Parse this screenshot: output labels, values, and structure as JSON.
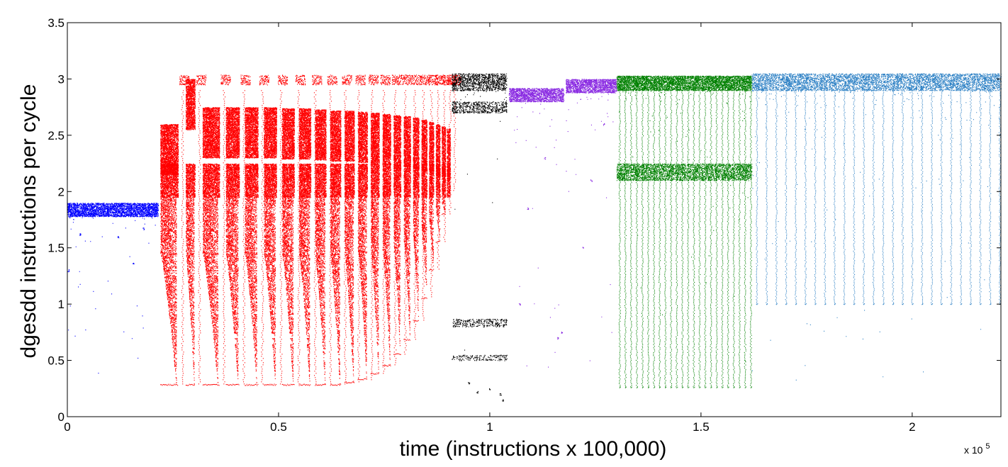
{
  "chart_data": {
    "type": "scatter",
    "title": "",
    "xlabel": "time (instructions x 100,000)",
    "ylabel": "dgesdd instructions per cycle",
    "x_multiplier_base": "x 10",
    "x_multiplier_exp": "5",
    "xlim": [
      0,
      221000
    ],
    "ylim": [
      0,
      3.5
    ],
    "x_ticks": [
      {
        "value": 0,
        "label": "0"
      },
      {
        "value": 50000,
        "label": "0.5"
      },
      {
        "value": 100000,
        "label": "1"
      },
      {
        "value": 150000,
        "label": "1.5"
      },
      {
        "value": 200000,
        "label": "2"
      }
    ],
    "y_ticks": [
      {
        "value": 0,
        "label": "0"
      },
      {
        "value": 0.5,
        "label": "0.5"
      },
      {
        "value": 1,
        "label": "1"
      },
      {
        "value": 1.5,
        "label": "1.5"
      },
      {
        "value": 2,
        "label": "2"
      },
      {
        "value": 2.5,
        "label": "2.5"
      },
      {
        "value": 3,
        "label": "3"
      },
      {
        "value": 3.5,
        "label": "3.5"
      }
    ],
    "grid": false,
    "legend": "none",
    "series": [
      {
        "color": "#0000ff",
        "x_range": [
          0,
          21500
        ],
        "bands": [
          {
            "ylo": 1.78,
            "yhi": 1.9,
            "density": 1.0
          }
        ],
        "outliers": [
          [
            200,
            1.3
          ],
          [
            15500,
            1.36
          ],
          [
            12000,
            1.6
          ],
          [
            3000,
            1.62
          ],
          [
            18000,
            1.67
          ]
        ]
      },
      {
        "color": "#ff0000",
        "cycles": [
          {
            "x": 22000,
            "w": 4200,
            "low": 0.28,
            "top": 2.6
          },
          {
            "x": 28000,
            "w": 2200,
            "low": 0.28,
            "top": 3.0
          },
          {
            "x": 32000,
            "w": 4000,
            "low": 0.28,
            "top": 2.75
          },
          {
            "x": 37500,
            "w": 3200,
            "low": 0.28,
            "top": 2.75
          },
          {
            "x": 42000,
            "w": 3100,
            "low": 0.28,
            "top": 2.75
          },
          {
            "x": 46500,
            "w": 3000,
            "low": 0.28,
            "top": 2.75
          },
          {
            "x": 50800,
            "w": 2900,
            "low": 0.28,
            "top": 2.74
          },
          {
            "x": 54800,
            "w": 2800,
            "low": 0.28,
            "top": 2.74
          },
          {
            "x": 58600,
            "w": 2600,
            "low": 0.28,
            "top": 2.73
          },
          {
            "x": 62200,
            "w": 2500,
            "low": 0.28,
            "top": 2.72
          },
          {
            "x": 65600,
            "w": 2300,
            "low": 0.3,
            "top": 2.72
          },
          {
            "x": 68800,
            "w": 2200,
            "low": 0.33,
            "top": 2.71
          },
          {
            "x": 71800,
            "w": 2000,
            "low": 0.38,
            "top": 2.7
          },
          {
            "x": 74600,
            "w": 1900,
            "low": 0.45,
            "top": 2.69
          },
          {
            "x": 77200,
            "w": 1700,
            "low": 0.55,
            "top": 2.68
          },
          {
            "x": 79600,
            "w": 1600,
            "low": 0.68,
            "top": 2.67
          },
          {
            "x": 81800,
            "w": 1400,
            "low": 0.85,
            "top": 2.66
          },
          {
            "x": 83800,
            "w": 1300,
            "low": 1.05,
            "top": 2.64
          },
          {
            "x": 85600,
            "w": 1100,
            "low": 1.3,
            "top": 2.62
          },
          {
            "x": 87200,
            "w": 1000,
            "low": 1.55,
            "top": 2.6
          },
          {
            "x": 88600,
            "w": 900,
            "low": 1.8,
            "top": 2.58
          },
          {
            "x": 89800,
            "w": 800,
            "low": 2.0,
            "top": 2.56
          }
        ]
      },
      {
        "color": "#000000",
        "x_range": [
          91000,
          104000
        ],
        "bands": [
          {
            "ylo": 2.9,
            "yhi": 3.05,
            "density": 0.5
          },
          {
            "ylo": 2.7,
            "yhi": 2.8,
            "density": 0.4
          },
          {
            "ylo": 0.8,
            "yhi": 0.87,
            "density": 0.3
          },
          {
            "ylo": 0.5,
            "yhi": 0.55,
            "density": 0.25
          }
        ],
        "outliers": [
          [
            95000,
            0.3
          ],
          [
            100000,
            0.25
          ],
          [
            102500,
            0.2
          ],
          [
            103000,
            0.15
          ],
          [
            97000,
            0.22
          ]
        ]
      },
      {
        "color": "#8a2be2",
        "x_range": [
          104500,
          117500
        ],
        "bands": [
          {
            "ylo": 2.8,
            "yhi": 2.92,
            "density": 1.0
          }
        ],
        "outliers": [
          [
            109000,
            1.85
          ],
          [
            107000,
            1.0
          ],
          [
            116000,
            0.7
          ],
          [
            117000,
            0.75
          ],
          [
            113000,
            2.3
          ]
        ]
      },
      {
        "color": "#8a2be2",
        "x_range": [
          118000,
          130000
        ],
        "bands": [
          {
            "ylo": 2.88,
            "yhi": 3.0,
            "density": 1.0
          }
        ],
        "outliers": [
          [
            122000,
            1.5
          ],
          [
            124000,
            2.1
          ],
          [
            127000,
            2.6
          ]
        ]
      },
      {
        "color": "#008000",
        "x_range": [
          130000,
          162000
        ],
        "bands": [
          {
            "ylo": 2.9,
            "yhi": 3.03,
            "density": 1.0
          },
          {
            "ylo": 2.1,
            "yhi": 2.25,
            "density": 0.6
          }
        ],
        "outliers": [],
        "periodic_drop": {
          "period": 1350,
          "ylo": 0.26
        }
      },
      {
        "color": "#2a7fc4",
        "x_range": [
          162000,
          221000
        ],
        "bands": [
          {
            "ylo": 2.9,
            "yhi": 3.05,
            "density": 1.0
          }
        ],
        "outliers": [],
        "periodic_drop": {
          "period": 2300,
          "ylo": 1.0
        }
      }
    ]
  }
}
